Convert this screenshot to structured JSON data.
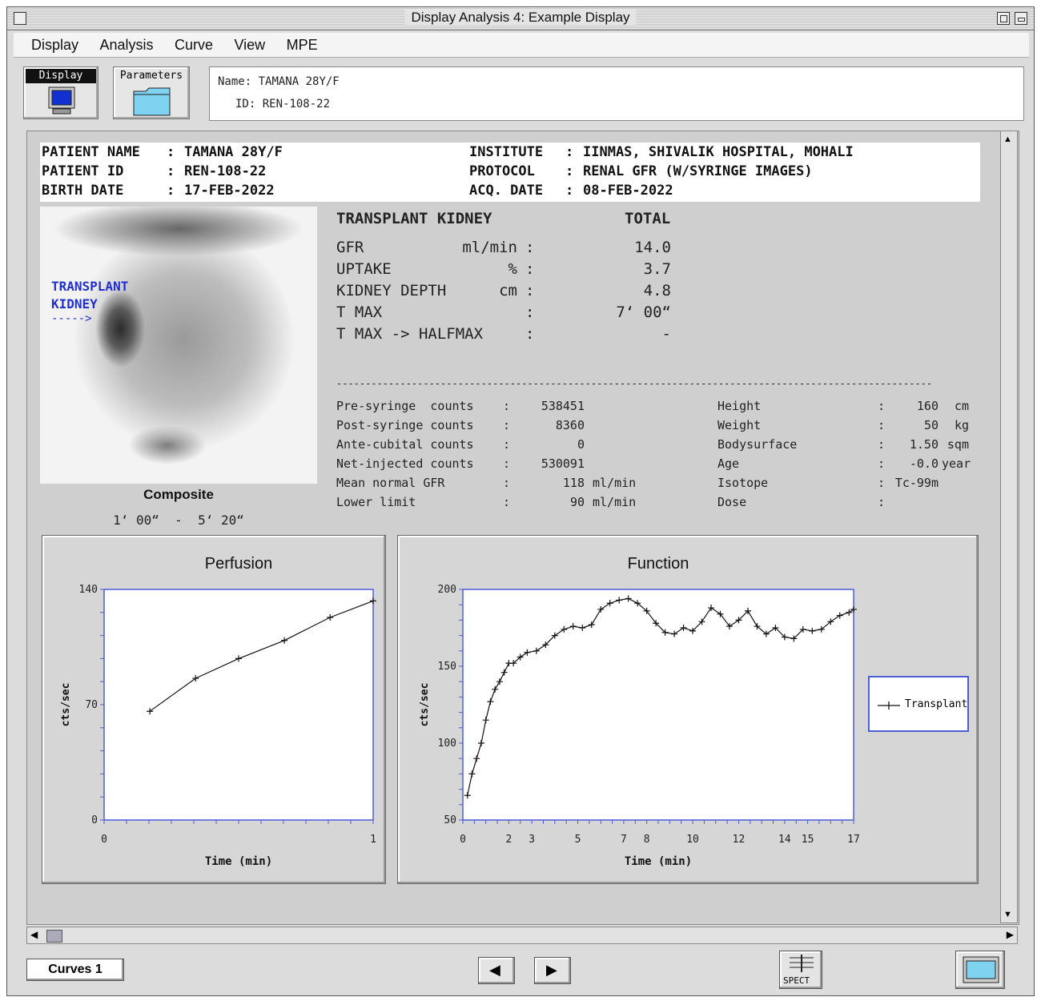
{
  "window": {
    "title": "Display Analysis 4: Example Display"
  },
  "menu": [
    "Display",
    "Analysis",
    "Curve",
    "View",
    "MPE"
  ],
  "toolbar": {
    "display_label": "Display",
    "parameters_label": "Parameters"
  },
  "info": {
    "name_label": "Name:",
    "name_value": "TAMANA 28Y/F",
    "id_label": "ID:",
    "id_value": "REN-108-22"
  },
  "header": {
    "rows": [
      {
        "k": "PATIENT NAME",
        "v": "TAMANA 28Y/F"
      },
      {
        "k": "PATIENT ID",
        "v": "REN-108-22"
      },
      {
        "k": "BIRTH DATE",
        "v": "17-FEB-2022"
      }
    ],
    "right_rows": [
      {
        "k": "INSTITUTE",
        "v": "IINMAS, SHIVALIK HOSPITAL, MOHALI"
      },
      {
        "k": "PROTOCOL",
        "v": "RENAL GFR (W/SYRINGE IMAGES)"
      },
      {
        "k": "ACQ. DATE",
        "v": "08-FEB-2022"
      }
    ]
  },
  "scan": {
    "label_line1": "TRANSPLANT",
    "label_line2": "KIDNEY",
    "arrow": "----->",
    "caption": "Composite",
    "time_range": "1‘ 00“  -  5‘ 20“"
  },
  "results": {
    "title": "TRANSPLANT KIDNEY",
    "total_label": "TOTAL",
    "rows": [
      {
        "label": "GFR",
        "unit": "ml/min",
        "value": "14.0"
      },
      {
        "label": "UPTAKE",
        "unit": "%",
        "value": "3.7"
      },
      {
        "label": "KIDNEY DEPTH",
        "unit": "cm",
        "value": "4.8"
      },
      {
        "label": "T MAX",
        "unit": "",
        "value": "7‘ 00“"
      },
      {
        "label": "T MAX -> HALFMAX",
        "unit": "",
        "value": "-"
      }
    ],
    "separator": "-------------------------------------------------------------------------------------------------------"
  },
  "counts": [
    {
      "label": "Pre-syringe  counts",
      "value": "538451",
      "unit": ""
    },
    {
      "label": "Post-syringe counts",
      "value": "8360",
      "unit": ""
    },
    {
      "label": "Ante-cubital counts",
      "value": "0",
      "unit": ""
    },
    {
      "label": "Net-injected counts",
      "value": "530091",
      "unit": ""
    },
    {
      "label": "Mean normal GFR",
      "value": "118",
      "unit": "ml/min"
    },
    {
      "label": "Lower limit",
      "value": "90",
      "unit": "ml/min"
    }
  ],
  "demographics": [
    {
      "label": "Height",
      "value": "160",
      "unit": "cm"
    },
    {
      "label": "Weight",
      "value": "50",
      "unit": "kg"
    },
    {
      "label": "Bodysurface",
      "value": "1.50",
      "unit": "sqm"
    },
    {
      "label": "Age",
      "value": "-0.0",
      "unit": "year"
    },
    {
      "label": "Isotope",
      "value": "Tc-99m",
      "unit": ""
    },
    {
      "label": "Dose",
      "value": "",
      "unit": ""
    }
  ],
  "chart_data": [
    {
      "type": "line",
      "title": "Perfusion",
      "xlabel": "Time (min)",
      "ylabel": "cts/sec",
      "xlim": [
        0,
        1
      ],
      "ylim": [
        0,
        140
      ],
      "xticks": [
        "0",
        "1"
      ],
      "yticks": [
        "0",
        "70",
        "140"
      ],
      "x": [
        0.17,
        0.34,
        0.5,
        0.67,
        0.84,
        1.0
      ],
      "y": [
        66,
        86,
        98,
        109,
        123,
        133
      ]
    },
    {
      "type": "line",
      "title": "Function",
      "xlabel": "Time (min)",
      "ylabel": "cts/sec",
      "xlim": [
        0,
        17
      ],
      "ylim": [
        50,
        200
      ],
      "xticks": [
        "0",
        "2",
        "3",
        "5",
        "7",
        "8",
        "10",
        "12",
        "14",
        "15",
        "17"
      ],
      "yticks": [
        "50",
        "100",
        "150",
        "200"
      ],
      "series": [
        {
          "name": "Transplant",
          "x": [
            0.2,
            0.4,
            0.6,
            0.8,
            1.0,
            1.2,
            1.4,
            1.6,
            1.8,
            2.0,
            2.2,
            2.5,
            2.8,
            3.2,
            3.6,
            4.0,
            4.4,
            4.8,
            5.2,
            5.6,
            6.0,
            6.4,
            6.8,
            7.2,
            7.6,
            8.0,
            8.4,
            8.8,
            9.2,
            9.6,
            10.0,
            10.4,
            10.8,
            11.2,
            11.6,
            12.0,
            12.4,
            12.8,
            13.2,
            13.6,
            14.0,
            14.4,
            14.8,
            15.2,
            15.6,
            16.0,
            16.4,
            16.8,
            17.0
          ],
          "y": [
            66,
            80,
            90,
            100,
            115,
            127,
            135,
            140,
            146,
            152,
            152,
            156,
            159,
            160,
            164,
            170,
            174,
            176,
            175,
            177,
            187,
            191,
            193,
            194,
            191,
            186,
            178,
            172,
            171,
            175,
            173,
            179,
            188,
            184,
            176,
            180,
            186,
            176,
            171,
            175,
            169,
            168,
            174,
            173,
            174,
            179,
            183,
            185,
            187
          ]
        }
      ]
    }
  ],
  "bottom": {
    "curves_label": "Curves 1",
    "spect_label": "SPECT"
  }
}
